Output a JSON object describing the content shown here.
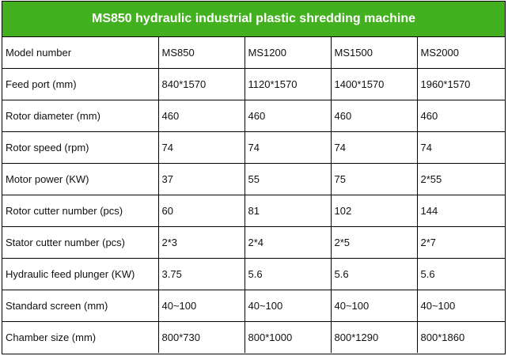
{
  "title": "MS850 hydraulic industrial plastic shredding machine",
  "colors": {
    "header_bg": "#43b01f",
    "header_text": "#ffffff",
    "border": "#000000"
  },
  "table": {
    "rows": [
      [
        "Model number",
        "MS850",
        "MS1200",
        "MS1500",
        "MS2000"
      ],
      [
        "Feed port (mm)",
        "840*1570",
        "1120*1570",
        "1400*1570",
        "1960*1570"
      ],
      [
        "Rotor diameter (mm)",
        "460",
        "460",
        "460",
        "460"
      ],
      [
        "Rotor speed (rpm)",
        "74",
        "74",
        "74",
        "74"
      ],
      [
        "Motor power (KW)",
        "37",
        "55",
        "75",
        "2*55"
      ],
      [
        "Rotor cutter number (pcs)",
        "60",
        "81",
        "102",
        "144"
      ],
      [
        "Stator cutter number (pcs)",
        "2*3",
        "2*4",
        "2*5",
        "2*7"
      ],
      [
        "Hydraulic feed plunger (KW)",
        "3.75",
        "5.6",
        "5.6",
        "5.6"
      ],
      [
        "Standard screen (mm)",
        "40~100",
        "40~100",
        "40~100",
        "40~100"
      ],
      [
        "Chamber size (mm)",
        "800*730",
        "800*1000",
        "800*1290",
        "800*1860"
      ]
    ]
  }
}
